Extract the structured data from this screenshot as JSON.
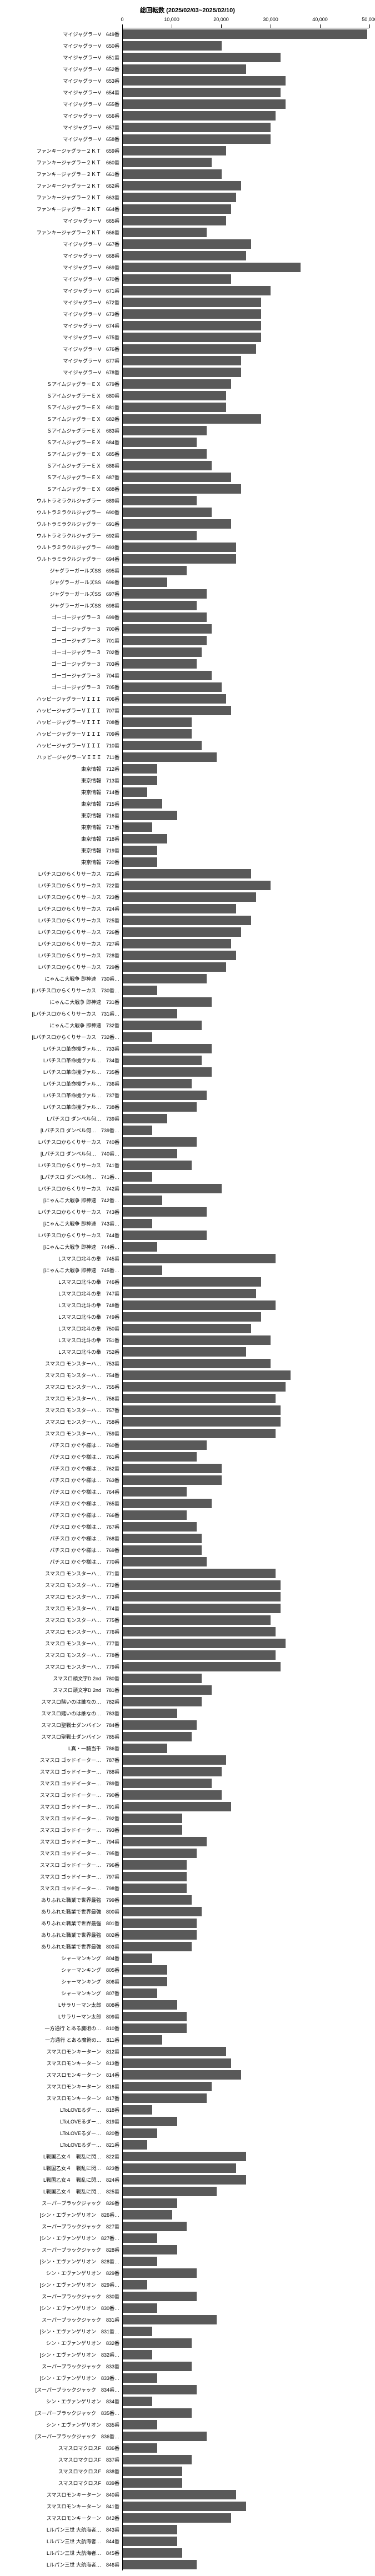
{
  "chart": {
    "title": "総回転数 (2025/02/03~2025/02/10)",
    "xmax": 50000,
    "ticks": [
      0,
      10000,
      20000,
      30000,
      40000,
      50000
    ],
    "bar_color": "#595959",
    "grid_color": "#d9d9d9",
    "background": "#ffffff",
    "title_fontsize": 11,
    "label_fontsize": 9,
    "rows": [
      {
        "label": "マイジャグラーV　649番",
        "value": 49500
      },
      {
        "label": "マイジャグラーV　650番",
        "value": 20000
      },
      {
        "label": "マイジャグラーV　651番",
        "value": 32000
      },
      {
        "label": "マイジャグラーV　652番",
        "value": 25000
      },
      {
        "label": "マイジャグラーV　653番",
        "value": 33000
      },
      {
        "label": "マイジャグラーV　654番",
        "value": 32000
      },
      {
        "label": "マイジャグラーV　655番",
        "value": 33000
      },
      {
        "label": "マイジャグラーV　656番",
        "value": 31000
      },
      {
        "label": "マイジャグラーV　657番",
        "value": 30000
      },
      {
        "label": "マイジャグラーV　658番",
        "value": 30000
      },
      {
        "label": "ファンキージャグラー２ＫＴ　659番",
        "value": 21000
      },
      {
        "label": "ファンキージャグラー２ＫＴ　660番",
        "value": 18000
      },
      {
        "label": "ファンキージャグラー２ＫＴ　661番",
        "value": 20000
      },
      {
        "label": "ファンキージャグラー２ＫＴ　662番",
        "value": 24000
      },
      {
        "label": "ファンキージャグラー２ＫＴ　663番",
        "value": 23000
      },
      {
        "label": "ファンキージャグラー２ＫＴ　664番",
        "value": 22000
      },
      {
        "label": "マイジャグラーV　665番",
        "value": 21000
      },
      {
        "label": "ファンキージャグラー２ＫＴ　666番",
        "value": 17000
      },
      {
        "label": "マイジャグラーV　667番",
        "value": 26000
      },
      {
        "label": "マイジャグラーV　668番",
        "value": 25000
      },
      {
        "label": "マイジャグラーV　669番",
        "value": 36000
      },
      {
        "label": "マイジャグラーV　670番",
        "value": 22000
      },
      {
        "label": "マイジャグラーV　671番",
        "value": 30000
      },
      {
        "label": "マイジャグラーV　672番",
        "value": 28000
      },
      {
        "label": "マイジャグラーV　673番",
        "value": 28000
      },
      {
        "label": "マイジャグラーV　674番",
        "value": 28000
      },
      {
        "label": "マイジャグラーV　675番",
        "value": 28000
      },
      {
        "label": "マイジャグラーV　676番",
        "value": 27000
      },
      {
        "label": "マイジャグラーV　677番",
        "value": 24000
      },
      {
        "label": "マイジャグラーV　678番",
        "value": 24000
      },
      {
        "label": "ＳアイムジャグラーＥＸ　679番",
        "value": 22000
      },
      {
        "label": "ＳアイムジャグラーＥＸ　680番",
        "value": 21000
      },
      {
        "label": "ＳアイムジャグラーＥＸ　681番",
        "value": 21000
      },
      {
        "label": "ＳアイムジャグラーＥＸ　682番",
        "value": 28000
      },
      {
        "label": "ＳアイムジャグラーＥＸ　683番",
        "value": 17000
      },
      {
        "label": "ＳアイムジャグラーＥＸ　684番",
        "value": 15000
      },
      {
        "label": "ＳアイムジャグラーＥＸ　685番",
        "value": 17000
      },
      {
        "label": "ＳアイムジャグラーＥＸ　686番",
        "value": 18000
      },
      {
        "label": "ＳアイムジャグラーＥＸ　687番",
        "value": 22000
      },
      {
        "label": "ＳアイムジャグラーＥＸ　688番",
        "value": 24000
      },
      {
        "label": "ウルトラミラクルジャグラー　689番",
        "value": 15000
      },
      {
        "label": "ウルトラミラクルジャグラー　690番",
        "value": 18000
      },
      {
        "label": "ウルトラミラクルジャグラー　691番",
        "value": 22000
      },
      {
        "label": "ウルトラミラクルジャグラー　692番",
        "value": 15000
      },
      {
        "label": "ウルトラミラクルジャグラー　693番",
        "value": 23000
      },
      {
        "label": "ウルトラミラクルジャグラー　694番",
        "value": 23000
      },
      {
        "label": "ジャグラーガールズSS　695番",
        "value": 13000
      },
      {
        "label": "ジャグラーガールズSS　696番",
        "value": 9000
      },
      {
        "label": "ジャグラーガールズSS　697番",
        "value": 17000
      },
      {
        "label": "ジャグラーガールズSS　698番",
        "value": 15000
      },
      {
        "label": "ゴーゴージャグラー３　699番",
        "value": 17000
      },
      {
        "label": "ゴーゴージャグラー３　700番",
        "value": 18000
      },
      {
        "label": "ゴーゴージャグラー３　701番",
        "value": 17000
      },
      {
        "label": "ゴーゴージャグラー３　702番",
        "value": 16000
      },
      {
        "label": "ゴーゴージャグラー３　703番",
        "value": 15000
      },
      {
        "label": "ゴーゴージャグラー３　704番",
        "value": 18000
      },
      {
        "label": "ゴーゴージャグラー３　705番",
        "value": 20000
      },
      {
        "label": "ハッピージャグラーＶＩＩＩ　706番",
        "value": 21000
      },
      {
        "label": "ハッピージャグラーＶＩＩＩ　707番",
        "value": 22000
      },
      {
        "label": "ハッピージャグラーＶＩＩＩ　708番",
        "value": 14000
      },
      {
        "label": "ハッピージャグラーＶＩＩＩ　709番",
        "value": 14000
      },
      {
        "label": "ハッピージャグラーＶＩＩＩ　710番",
        "value": 16000
      },
      {
        "label": "ハッピージャグラーＶＩＩＩ　711番",
        "value": 19000
      },
      {
        "label": "東京情報　712番",
        "value": 7000
      },
      {
        "label": "東京情報　713番",
        "value": 7000
      },
      {
        "label": "東京情報　714番",
        "value": 5000
      },
      {
        "label": "東京情報　715番",
        "value": 8000
      },
      {
        "label": "東京情報　716番",
        "value": 11000
      },
      {
        "label": "東京情報　717番",
        "value": 6000
      },
      {
        "label": "東京情報　718番",
        "value": 9000
      },
      {
        "label": "東京情報　719番",
        "value": 7000
      },
      {
        "label": "東京情報　720番",
        "value": 7000
      },
      {
        "label": "Lパチスロからくりサーカス　721番",
        "value": 26000
      },
      {
        "label": "Lパチスロからくりサーカス　722番",
        "value": 30000
      },
      {
        "label": "Lパチスロからくりサーカス　723番",
        "value": 27000
      },
      {
        "label": "Lパチスロからくりサーカス　724番",
        "value": 23000
      },
      {
        "label": "Lパチスロからくりサーカス　725番",
        "value": 26000
      },
      {
        "label": "Lパチスロからくりサーカス　726番",
        "value": 24000
      },
      {
        "label": "Lパチスロからくりサーカス　727番",
        "value": 22000
      },
      {
        "label": "Lパチスロからくりサーカス　728番",
        "value": 23000
      },
      {
        "label": "Lパチスロからくりサーカス　729番",
        "value": 21000
      },
      {
        "label": "にゃんこ大戦争 即神速　730番…",
        "value": 17000
      },
      {
        "label": "[Lパチスロからくりサーカス　730番…",
        "value": 7000
      },
      {
        "label": "にゃんこ大戦争 即神速　731番",
        "value": 18000
      },
      {
        "label": "[Lパチスロからくりサーカス　731番…",
        "value": 11000
      },
      {
        "label": "にゃんこ大戦争 即神速　732番",
        "value": 16000
      },
      {
        "label": "[Lパチスロからくりサーカス　732番…",
        "value": 6000
      },
      {
        "label": "Lパチスロ革命機ヴァル…　733番",
        "value": 18000
      },
      {
        "label": "Lパチスロ革命機ヴァル…　734番",
        "value": 16000
      },
      {
        "label": "Lパチスロ革命機ヴァル…　735番",
        "value": 18000
      },
      {
        "label": "Lパチスロ革命機ヴァル…　736番",
        "value": 14000
      },
      {
        "label": "Lパチスロ革命機ヴァル…　737番",
        "value": 17000
      },
      {
        "label": "Lパチスロ革命機ヴァル…　738番",
        "value": 15000
      },
      {
        "label": "Lパチスロ ダンベル何…　739番",
        "value": 9000
      },
      {
        "label": "[Lパチスロ ダンベル何…　739番…",
        "value": 6000
      },
      {
        "label": "Lパチスロからくりサーカス　740番",
        "value": 15000
      },
      {
        "label": "[Lパチスロ ダンベル何…　740番…",
        "value": 11000
      },
      {
        "label": "Lパチスロからくりサーカス　741番",
        "value": 14000
      },
      {
        "label": "[Lパチスロ ダンベル何…　741番…",
        "value": 6000
      },
      {
        "label": "Lパチスロからくりサーカス　742番",
        "value": 20000
      },
      {
        "label": "[にゃんこ大戦争 即神速　742番…",
        "value": 8000
      },
      {
        "label": "Lパチスロからくりサーカス　743番",
        "value": 17000
      },
      {
        "label": "[にゃんこ大戦争 即神速　743番…",
        "value": 6000
      },
      {
        "label": "Lパチスロからくりサーカス　744番",
        "value": 17000
      },
      {
        "label": "[にゃんこ大戦争 即神速　744番…",
        "value": 7000
      },
      {
        "label": "Lスマスロ北斗の拳　745番",
        "value": 31000
      },
      {
        "label": "[にゃんこ大戦争 即神速　745番…",
        "value": 8000
      },
      {
        "label": "Lスマスロ北斗の拳　746番",
        "value": 28000
      },
      {
        "label": "Lスマスロ北斗の拳　747番",
        "value": 27000
      },
      {
        "label": "Lスマスロ北斗の拳　748番",
        "value": 31000
      },
      {
        "label": "Lスマスロ北斗の拳　749番",
        "value": 28000
      },
      {
        "label": "Lスマスロ北斗の拳　750番",
        "value": 26000
      },
      {
        "label": "Lスマスロ北斗の拳　751番",
        "value": 30000
      },
      {
        "label": "Lスマスロ北斗の拳　752番",
        "value": 25000
      },
      {
        "label": "スマスロ モンスターハ…　753番",
        "value": 30000
      },
      {
        "label": "スマスロ モンスターハ…　754番",
        "value": 34000
      },
      {
        "label": "スマスロ モンスターハ…　755番",
        "value": 33000
      },
      {
        "label": "スマスロ モンスターハ…　756番",
        "value": 31000
      },
      {
        "label": "スマスロ モンスターハ…　757番",
        "value": 32000
      },
      {
        "label": "スマスロ モンスターハ…　758番",
        "value": 32000
      },
      {
        "label": "スマスロ モンスターハ…　759番",
        "value": 31000
      },
      {
        "label": "パチスロ かぐや様は…　760番",
        "value": 17000
      },
      {
        "label": "パチスロ かぐや様は…　761番",
        "value": 15000
      },
      {
        "label": "パチスロ かぐや様は…　762番",
        "value": 20000
      },
      {
        "label": "パチスロ かぐや様は…　763番",
        "value": 20000
      },
      {
        "label": "パチスロ かぐや様は…　764番",
        "value": 13000
      },
      {
        "label": "パチスロ かぐや様は…　765番",
        "value": 18000
      },
      {
        "label": "パチスロ かぐや様は…　766番",
        "value": 13000
      },
      {
        "label": "パチスロ かぐや様は…　767番",
        "value": 15000
      },
      {
        "label": "パチスロ かぐや様は…　768番",
        "value": 16000
      },
      {
        "label": "パチスロ かぐや様は…　769番",
        "value": 16000
      },
      {
        "label": "パチスロ かぐや様は…　770番",
        "value": 17000
      },
      {
        "label": "スマスロ モンスターハ…　771番",
        "value": 31000
      },
      {
        "label": "スマスロ モンスターハ…　772番",
        "value": 32000
      },
      {
        "label": "スマスロ モンスターハ…　773番",
        "value": 32000
      },
      {
        "label": "スマスロ モンスターハ…　774番",
        "value": 32000
      },
      {
        "label": "スマスロ モンスターハ…　775番",
        "value": 30000
      },
      {
        "label": "スマスロ モンスターハ…　776番",
        "value": 31000
      },
      {
        "label": "スマスロ モンスターハ…　777番",
        "value": 33000
      },
      {
        "label": "スマスロ モンスターハ…　778番",
        "value": 31000
      },
      {
        "label": "スマスロ モンスターハ…　779番",
        "value": 32000
      },
      {
        "label": "スマスロ頭文字D 2nd　780番",
        "value": 16000
      },
      {
        "label": "スマスロ頭文字D 2nd　781番",
        "value": 18000
      },
      {
        "label": "スマスロ賭いのは誰なの…　782番",
        "value": 16000
      },
      {
        "label": "スマスロ賭いのは誰なの…　783番",
        "value": 11000
      },
      {
        "label": "スマスロ聖戦士ダンバイン　784番",
        "value": 15000
      },
      {
        "label": "スマスロ聖戦士ダンバイン　785番",
        "value": 14000
      },
      {
        "label": "L真・一騎当千　786番",
        "value": 9000
      },
      {
        "label": "スマスロ ゴッドイーター…　787番",
        "value": 21000
      },
      {
        "label": "スマスロ ゴッドイーター…　788番",
        "value": 20000
      },
      {
        "label": "スマスロ ゴッドイーター…　789番",
        "value": 18000
      },
      {
        "label": "スマスロ ゴッドイーター…　790番",
        "value": 20000
      },
      {
        "label": "スマスロ ゴッドイーター…　791番",
        "value": 22000
      },
      {
        "label": "スマスロ ゴッドイーター…　792番",
        "value": 12000
      },
      {
        "label": "スマスロ ゴッドイーター…　793番",
        "value": 12000
      },
      {
        "label": "スマスロ ゴッドイーター…　794番",
        "value": 17000
      },
      {
        "label": "スマスロ ゴッドイーター…　795番",
        "value": 15000
      },
      {
        "label": "スマスロ ゴッドイーター…　796番",
        "value": 13000
      },
      {
        "label": "スマスロ ゴッドイーター…　797番",
        "value": 13000
      },
      {
        "label": "スマスロ ゴッドイーター…　798番",
        "value": 13000
      },
      {
        "label": "ありふれた職業で世界最強　799番",
        "value": 14000
      },
      {
        "label": "ありふれた職業で世界最強　800番",
        "value": 16000
      },
      {
        "label": "ありふれた職業で世界最強　801番",
        "value": 15000
      },
      {
        "label": "ありふれた職業で世界最強　802番",
        "value": 15000
      },
      {
        "label": "ありふれた職業で世界最強　803番",
        "value": 14000
      },
      {
        "label": "シャーマンキング　804番",
        "value": 6000
      },
      {
        "label": "シャーマンキング　805番",
        "value": 9000
      },
      {
        "label": "シャーマンキング　806番",
        "value": 9000
      },
      {
        "label": "シャーマンキング　807番",
        "value": 7000
      },
      {
        "label": "Lサラリーマン太郎　808番",
        "value": 11000
      },
      {
        "label": "Lサラリーマン太郎　809番",
        "value": 13000
      },
      {
        "label": "一方通行 とある魔術の…　810番",
        "value": 13000
      },
      {
        "label": "一方通行 とある魔術の…　811番",
        "value": 8000
      },
      {
        "label": "スマスロモンキーターン　812番",
        "value": 21000
      },
      {
        "label": "スマスロモンキーターン　813番",
        "value": 22000
      },
      {
        "label": "スマスロモンキーターン　814番",
        "value": 24000
      },
      {
        "label": "スマスロモンキーターン　816番",
        "value": 18000
      },
      {
        "label": "スマスロモンキーターン　817番",
        "value": 17000
      },
      {
        "label": "LToLOVEるダー…　818番",
        "value": 6000
      },
      {
        "label": "LToLOVEるダー…　819番",
        "value": 11000
      },
      {
        "label": "LToLOVEるダー…　820番",
        "value": 7000
      },
      {
        "label": "LToLOVEるダー…　821番",
        "value": 5000
      },
      {
        "label": "L戦国乙女４　戦乱に閃…　822番",
        "value": 25000
      },
      {
        "label": "L戦国乙女４　戦乱に閃…　823番",
        "value": 23000
      },
      {
        "label": "L戦国乙女４　戦乱に閃…　824番",
        "value": 25000
      },
      {
        "label": "L戦国乙女４　戦乱に閃…　825番",
        "value": 19000
      },
      {
        "label": "スーパーブラックジャック　826番",
        "value": 11000
      },
      {
        "label": "[シン・エヴァンゲリオン　826番…",
        "value": 10000
      },
      {
        "label": "スーパーブラックジャック　827番",
        "value": 13000
      },
      {
        "label": "[シン・エヴァンゲリオン　827番…",
        "value": 7000
      },
      {
        "label": "スーパーブラックジャック　828番",
        "value": 11000
      },
      {
        "label": "[シン・エヴァンゲリオン　828番…",
        "value": 7000
      },
      {
        "label": "シン・エヴァンゲリオン　829番",
        "value": 15000
      },
      {
        "label": "[シン・エヴァンゲリオン　829番…",
        "value": 5000
      },
      {
        "label": "スーパーブラックジャック　830番",
        "value": 15000
      },
      {
        "label": "[シン・エヴァンゲリオン　830番…",
        "value": 7000
      },
      {
        "label": "スーパーブラックジャック　831番",
        "value": 19000
      },
      {
        "label": "[シン・エヴァンゲリオン　831番…",
        "value": 6000
      },
      {
        "label": "シン・エヴァンゲリオン　832番",
        "value": 14000
      },
      {
        "label": "[シン・エヴァンゲリオン　832番…",
        "value": 6000
      },
      {
        "label": "スーパーブラックジャック　833番",
        "value": 14000
      },
      {
        "label": "[シン・エヴァンゲリオン　833番…",
        "value": 7000
      },
      {
        "label": "[スーパーブラックジャック　834番…",
        "value": 15000
      },
      {
        "label": "シン・エヴァンゲリオン　834番",
        "value": 6000
      },
      {
        "label": "[スーパーブラックジャック　835番…",
        "value": 14000
      },
      {
        "label": "シン・エヴァンゲリオン　835番",
        "value": 7000
      },
      {
        "label": "[スーパーブラックジャック　836番…",
        "value": 17000
      },
      {
        "label": "スマスロマクロスF　836番",
        "value": 7000
      },
      {
        "label": "スマスロマクロスF　837番",
        "value": 14000
      },
      {
        "label": "スマスロマクロスF　838番",
        "value": 12000
      },
      {
        "label": "スマスロマクロスF　839番",
        "value": 12000
      },
      {
        "label": "スマスロモンキーターン　840番",
        "value": 23000
      },
      {
        "label": "スマスロモンキーターン　841番",
        "value": 25000
      },
      {
        "label": "スマスロモンキーターン　842番",
        "value": 22000
      },
      {
        "label": "Lルパン三世 大航海者…　843番",
        "value": 11000
      },
      {
        "label": "Lルパン三世 大航海者…　844番",
        "value": 11000
      },
      {
        "label": "Lルパン三世 大航海者…　845番",
        "value": 12000
      },
      {
        "label": "Lルパン三世 大航海者…　846番",
        "value": 15000
      }
    ]
  }
}
